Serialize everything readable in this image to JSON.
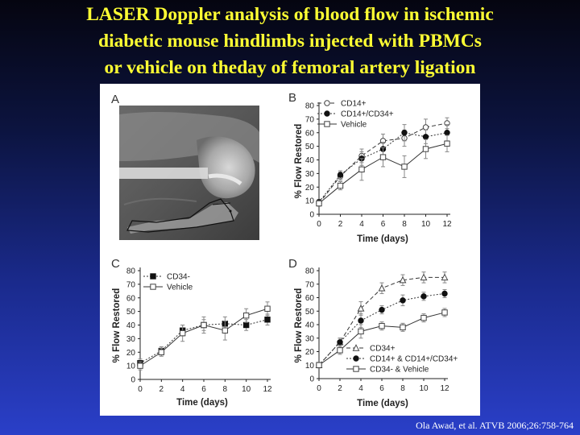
{
  "slide": {
    "title_lines": [
      "LASER Doppler analysis of blood flow in ischemic",
      "diabetic mouse hindlimbs injected with PBMCs",
      "or vehicle on theday of femoral artery ligation"
    ],
    "citation": "Ola Awad, et al.  ATVB 2006;26:758-764",
    "title_color": "#ffff33"
  },
  "panel_a": {
    "letter": "A",
    "content": "grayscale-mouse-hindlimb-photo"
  },
  "chart_data": [
    {
      "panel": "B",
      "type": "line",
      "x": [
        0,
        2,
        4,
        6,
        8,
        10,
        12
      ],
      "xlabel": "Time (days)",
      "ylabel": "% Flow Restored",
      "xticks": [
        0,
        2,
        4,
        6,
        8,
        10,
        12
      ],
      "yticks": [
        0,
        10,
        20,
        30,
        40,
        50,
        60,
        70,
        80
      ],
      "xlim": [
        0,
        12
      ],
      "ylim": [
        0,
        80
      ],
      "series": [
        {
          "name": "CD14+",
          "marker": "circle-open",
          "dash": "dash",
          "values": [
            8,
            28,
            43,
            54,
            56,
            64,
            67
          ],
          "err": [
            2,
            3,
            5,
            5,
            6,
            6,
            4
          ]
        },
        {
          "name": "CD14+/CD34+",
          "marker": "circle-filled",
          "dash": "dot",
          "values": [
            9,
            29,
            41,
            48,
            60,
            57,
            60
          ],
          "err": [
            2,
            3,
            5,
            5,
            6,
            5,
            6
          ]
        },
        {
          "name": "Vehicle",
          "marker": "square-open",
          "dash": "solid",
          "values": [
            8,
            21,
            33,
            42,
            35,
            48,
            52
          ],
          "err": [
            2,
            3,
            8,
            7,
            8,
            7,
            6
          ]
        }
      ]
    },
    {
      "panel": "C",
      "type": "line",
      "x": [
        0,
        2,
        4,
        6,
        8,
        10,
        12
      ],
      "xlabel": "Time (days)",
      "ylabel": "% Flow Restored",
      "xticks": [
        0,
        2,
        4,
        6,
        8,
        10,
        12
      ],
      "yticks": [
        0,
        10,
        20,
        30,
        40,
        50,
        60,
        70,
        80
      ],
      "xlim": [
        0,
        12
      ],
      "ylim": [
        0,
        80
      ],
      "series": [
        {
          "name": "CD34-",
          "marker": "square-filled",
          "dash": "dot",
          "values": [
            12,
            21,
            36,
            40,
            41,
            40,
            44
          ],
          "err": [
            3,
            3,
            4,
            4,
            5,
            4,
            4
          ]
        },
        {
          "name": "Vehicle",
          "marker": "square-open",
          "dash": "solid",
          "values": [
            10,
            20,
            34,
            40,
            36,
            47,
            52
          ],
          "err": [
            3,
            3,
            6,
            6,
            7,
            5,
            5
          ]
        }
      ]
    },
    {
      "panel": "D",
      "type": "line",
      "x": [
        0,
        2,
        4,
        6,
        8,
        10,
        12
      ],
      "xlabel": "Time (days)",
      "ylabel": "% Flow Restored",
      "xticks": [
        0,
        2,
        4,
        6,
        8,
        10,
        12
      ],
      "yticks": [
        0,
        10,
        20,
        30,
        40,
        50,
        60,
        70,
        80
      ],
      "xlim": [
        0,
        12
      ],
      "ylim": [
        0,
        80
      ],
      "series": [
        {
          "name": "CD34+",
          "marker": "triangle-open",
          "dash": "dash",
          "values": [
            10,
            27,
            52,
            67,
            73,
            75,
            75
          ],
          "err": [
            2,
            3,
            5,
            4,
            4,
            4,
            4
          ]
        },
        {
          "name": "CD14+ & CD14+/CD34+",
          "marker": "circle-filled",
          "dash": "dot",
          "values": [
            10,
            27,
            43,
            51,
            58,
            61,
            63
          ],
          "err": [
            2,
            3,
            5,
            3,
            4,
            3,
            3
          ]
        },
        {
          "name": "CD34- & Vehicle",
          "marker": "square-open",
          "dash": "solid",
          "values": [
            10,
            21,
            35,
            39,
            38,
            45,
            49
          ],
          "err": [
            2,
            3,
            5,
            3,
            3,
            3,
            3
          ]
        }
      ]
    }
  ]
}
